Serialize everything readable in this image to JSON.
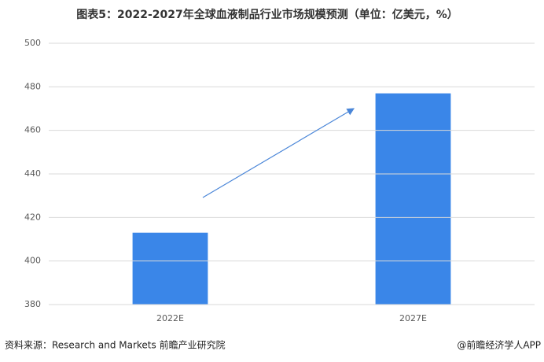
{
  "chart_data": {
    "type": "bar",
    "title": "图表5：2022-2027年全球血液制品行业市场规模预测（单位：亿美元，%）",
    "categories": [
      "2022E",
      "2027E"
    ],
    "values": [
      413,
      477
    ],
    "color": "#3a86e8",
    "ylim": [
      380,
      500
    ],
    "yticks": [
      380,
      400,
      420,
      440,
      460,
      480,
      500
    ],
    "grid": true,
    "source": "资料来源：Research and Markets 前瞻产业研究院",
    "credit": "@前瞻经济学人APP"
  }
}
